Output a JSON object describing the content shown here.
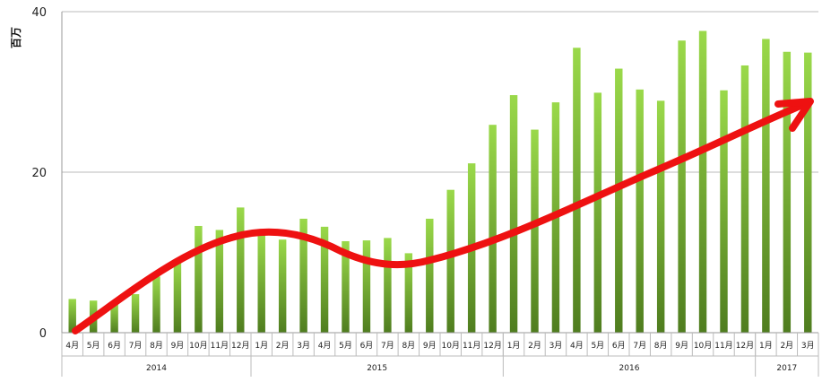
{
  "chart_data": {
    "type": "bar",
    "ylabel": "百万",
    "ylim": [
      0,
      40
    ],
    "yticks": [
      0,
      20,
      40
    ],
    "grid": true,
    "categories": [
      "4月",
      "5月",
      "6月",
      "7月",
      "8月",
      "9月",
      "10月",
      "11月",
      "12月",
      "1月",
      "2月",
      "3月",
      "4月",
      "5月",
      "6月",
      "7月",
      "8月",
      "9月",
      "10月",
      "11月",
      "12月",
      "1月",
      "2月",
      "3月",
      "4月",
      "5月",
      "6月",
      "7月",
      "8月",
      "9月",
      "10月",
      "11月",
      "12月",
      "1月",
      "2月",
      "3月"
    ],
    "groups": [
      {
        "label": "2014",
        "count": 9
      },
      {
        "label": "2015",
        "count": 12
      },
      {
        "label": "2016",
        "count": 12
      },
      {
        "label": "2017",
        "count": 3
      }
    ],
    "values": [
      4.2,
      4.0,
      3.7,
      4.8,
      7.0,
      8.8,
      13.3,
      12.8,
      15.6,
      12.3,
      11.6,
      14.2,
      13.2,
      11.4,
      11.5,
      11.8,
      9.9,
      14.2,
      17.8,
      21.1,
      25.9,
      29.6,
      25.3,
      28.7,
      35.5,
      29.9,
      32.9,
      30.3,
      28.9,
      36.4,
      37.6,
      30.2,
      33.3,
      36.6,
      35.0,
      34.9
    ],
    "colors": {
      "bar_top": "#9ad94a",
      "bar_bottom": "#4f7d1f",
      "trend": "#ee1111",
      "grid": "#bbbbbb"
    }
  }
}
